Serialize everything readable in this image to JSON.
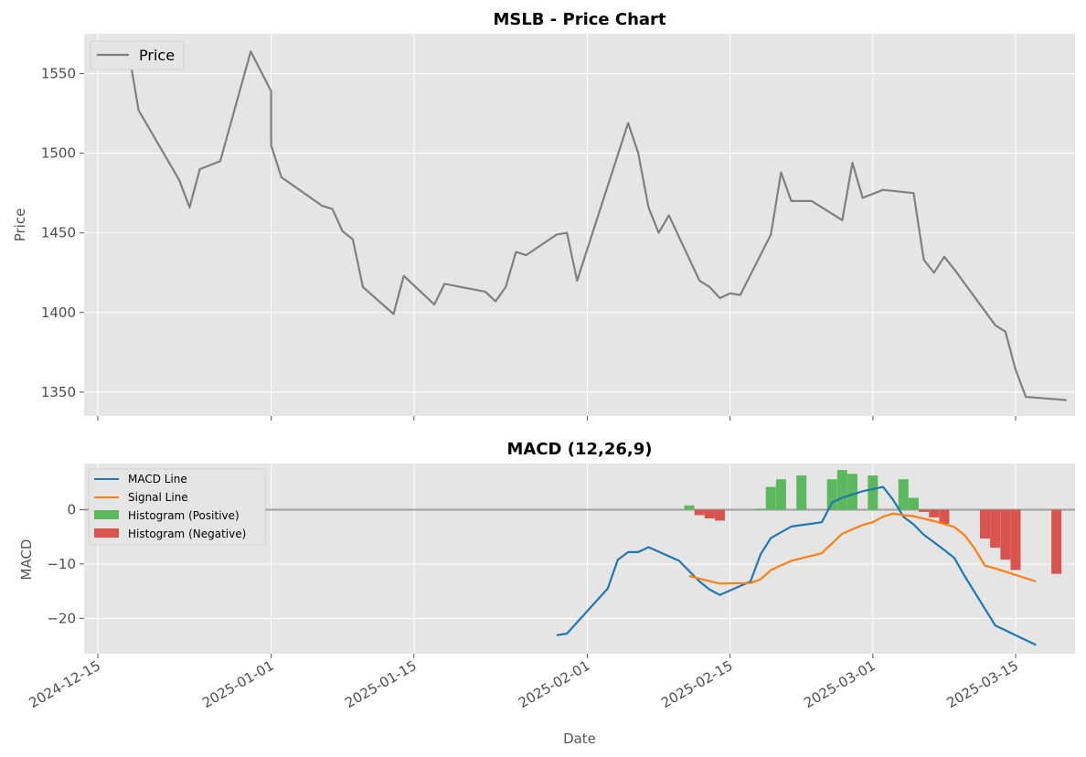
{
  "figure": {
    "xlabel": "Date",
    "x_tick_labels": [
      "2024-12-15",
      "2025-01-01",
      "2025-01-15",
      "2025-02-01",
      "2025-02-15",
      "2025-03-01",
      "2025-03-15"
    ]
  },
  "chart_data": [
    {
      "type": "line",
      "title": "MSLB - Price Chart",
      "xlabel": "",
      "ylabel": "Price",
      "ylim": [
        1335,
        1575
      ],
      "y_ticks": [
        1350,
        1400,
        1450,
        1500,
        1550
      ],
      "grid": true,
      "legend": "top-left",
      "series": [
        {
          "name": "Price",
          "color": "#808080",
          "points": [
            [
              "2024-12-18",
              1565
            ],
            [
              "2024-12-19",
              1527
            ],
            [
              "2024-12-23",
              1483
            ],
            [
              "2024-12-24",
              1466
            ],
            [
              "2024-12-25",
              1490
            ],
            [
              "2024-12-27",
              1495
            ],
            [
              "2024-12-30",
              1564
            ],
            [
              "2025-01-01",
              1539
            ],
            [
              "2025-01-01",
              1505
            ],
            [
              "2025-01-02",
              1485
            ],
            [
              "2025-01-06",
              1467
            ],
            [
              "2025-01-07",
              1465
            ],
            [
              "2025-01-08",
              1451
            ],
            [
              "2025-01-09",
              1446
            ],
            [
              "2025-01-10",
              1416
            ],
            [
              "2025-01-13",
              1399
            ],
            [
              "2025-01-14",
              1423
            ],
            [
              "2025-01-17",
              1405
            ],
            [
              "2025-01-18",
              1418
            ],
            [
              "2025-01-22",
              1413
            ],
            [
              "2025-01-23",
              1407
            ],
            [
              "2025-01-24",
              1416
            ],
            [
              "2025-01-25",
              1438
            ],
            [
              "2025-01-26",
              1436
            ],
            [
              "2025-01-29",
              1449
            ],
            [
              "2025-01-30",
              1450
            ],
            [
              "2025-01-31",
              1420
            ],
            [
              "2025-02-05",
              1519
            ],
            [
              "2025-02-06",
              1500
            ],
            [
              "2025-02-07",
              1466
            ],
            [
              "2025-02-08",
              1450
            ],
            [
              "2025-02-09",
              1461
            ],
            [
              "2025-02-12",
              1420
            ],
            [
              "2025-02-13",
              1416
            ],
            [
              "2025-02-14",
              1409
            ],
            [
              "2025-02-15",
              1412
            ],
            [
              "2025-02-16",
              1411
            ],
            [
              "2025-02-19",
              1449
            ],
            [
              "2025-02-20",
              1488
            ],
            [
              "2025-02-21",
              1470
            ],
            [
              "2025-02-23",
              1470
            ],
            [
              "2025-02-26",
              1458
            ],
            [
              "2025-02-27",
              1494
            ],
            [
              "2025-02-28",
              1472
            ],
            [
              "2025-03-02",
              1477
            ],
            [
              "2025-03-05",
              1475
            ],
            [
              "2025-03-06",
              1433
            ],
            [
              "2025-03-07",
              1425
            ],
            [
              "2025-03-08",
              1435
            ],
            [
              "2025-03-09",
              1427
            ],
            [
              "2025-03-13",
              1392
            ],
            [
              "2025-03-14",
              1388
            ],
            [
              "2025-03-15",
              1364
            ],
            [
              "2025-03-16",
              1347
            ],
            [
              "2025-03-20",
              1345
            ]
          ]
        }
      ]
    },
    {
      "type": "line",
      "title": "MACD (12,26,9)",
      "xlabel": "Date",
      "ylabel": "MACD",
      "ylim": [
        -26.5,
        8.5
      ],
      "y_ticks": [
        -20,
        -10,
        0
      ],
      "grid": true,
      "legend": "top-left",
      "zero_line": 0,
      "series": [
        {
          "name": "MACD Line",
          "color": "#1f77b4",
          "points": [
            [
              "2025-01-29",
              -23.1
            ],
            [
              "2025-01-30",
              -22.8
            ],
            [
              "2025-02-03",
              -14.5
            ],
            [
              "2025-02-04",
              -9.2
            ],
            [
              "2025-02-05",
              -7.8
            ],
            [
              "2025-02-06",
              -7.8
            ],
            [
              "2025-02-07",
              -6.9
            ],
            [
              "2025-02-10",
              -9.4
            ],
            [
              "2025-02-12",
              -13.2
            ],
            [
              "2025-02-13",
              -14.7
            ],
            [
              "2025-02-14",
              -15.7
            ],
            [
              "2025-02-17",
              -13.2
            ],
            [
              "2025-02-18",
              -8.2
            ],
            [
              "2025-02-19",
              -5.2
            ],
            [
              "2025-02-21",
              -3.1
            ],
            [
              "2025-02-24",
              -2.3
            ],
            [
              "2025-02-25",
              1.3
            ],
            [
              "2025-02-26",
              2.2
            ],
            [
              "2025-02-28",
              3.4
            ],
            [
              "2025-03-02",
              4.2
            ],
            [
              "2025-03-03",
              1.8
            ],
            [
              "2025-03-04",
              -1.3
            ],
            [
              "2025-03-05",
              -2.7
            ],
            [
              "2025-03-06",
              -4.6
            ],
            [
              "2025-03-08",
              -7.4
            ],
            [
              "2025-03-09",
              -8.9
            ],
            [
              "2025-03-10",
              -12.2
            ],
            [
              "2025-03-13",
              -21.3
            ],
            [
              "2025-03-17",
              -24.9
            ]
          ]
        },
        {
          "name": "Signal Line",
          "color": "#ff7f0e",
          "points": [
            [
              "2025-02-11",
              -12.2
            ],
            [
              "2025-02-12",
              -12.7
            ],
            [
              "2025-02-14",
              -13.6
            ],
            [
              "2025-02-17",
              -13.5
            ],
            [
              "2025-02-18",
              -12.8
            ],
            [
              "2025-02-19",
              -11.1
            ],
            [
              "2025-02-21",
              -9.4
            ],
            [
              "2025-02-24",
              -8.0
            ],
            [
              "2025-02-26",
              -4.4
            ],
            [
              "2025-02-28",
              -2.8
            ],
            [
              "2025-03-01",
              -2.3
            ],
            [
              "2025-03-02",
              -1.3
            ],
            [
              "2025-03-03",
              -0.7
            ],
            [
              "2025-03-04",
              -1.0
            ],
            [
              "2025-03-05",
              -1.2
            ],
            [
              "2025-03-07",
              -2.1
            ],
            [
              "2025-03-09",
              -3.2
            ],
            [
              "2025-03-10",
              -4.7
            ],
            [
              "2025-03-11",
              -7.2
            ],
            [
              "2025-03-12",
              -10.3
            ],
            [
              "2025-03-13",
              -10.8
            ],
            [
              "2025-03-17",
              -13.2
            ]
          ]
        }
      ],
      "histogram": {
        "positive_label": "Histogram (Positive)",
        "negative_label": "Histogram (Negative)",
        "positive_color": "#5cb85c",
        "negative_color": "#d9534f",
        "bars": [
          [
            "2025-02-11",
            0.8
          ],
          [
            "2025-02-12",
            -1.0
          ],
          [
            "2025-02-13",
            -1.6
          ],
          [
            "2025-02-14",
            -2.0
          ],
          [
            "2025-02-18",
            0.2
          ],
          [
            "2025-02-19",
            4.2
          ],
          [
            "2025-02-20",
            5.6
          ],
          [
            "2025-02-22",
            6.3
          ],
          [
            "2025-02-25",
            5.6
          ],
          [
            "2025-02-26",
            7.3
          ],
          [
            "2025-02-27",
            6.6
          ],
          [
            "2025-03-01",
            6.3
          ],
          [
            "2025-03-04",
            5.6
          ],
          [
            "2025-03-05",
            2.2
          ],
          [
            "2025-03-06",
            -0.4
          ],
          [
            "2025-03-07",
            -1.4
          ],
          [
            "2025-03-08",
            -2.6
          ],
          [
            "2025-03-12",
            -5.3
          ],
          [
            "2025-03-13",
            -7.0
          ],
          [
            "2025-03-14",
            -9.2
          ],
          [
            "2025-03-15",
            -11.1
          ],
          [
            "2025-03-19",
            -11.8
          ]
        ]
      }
    }
  ]
}
